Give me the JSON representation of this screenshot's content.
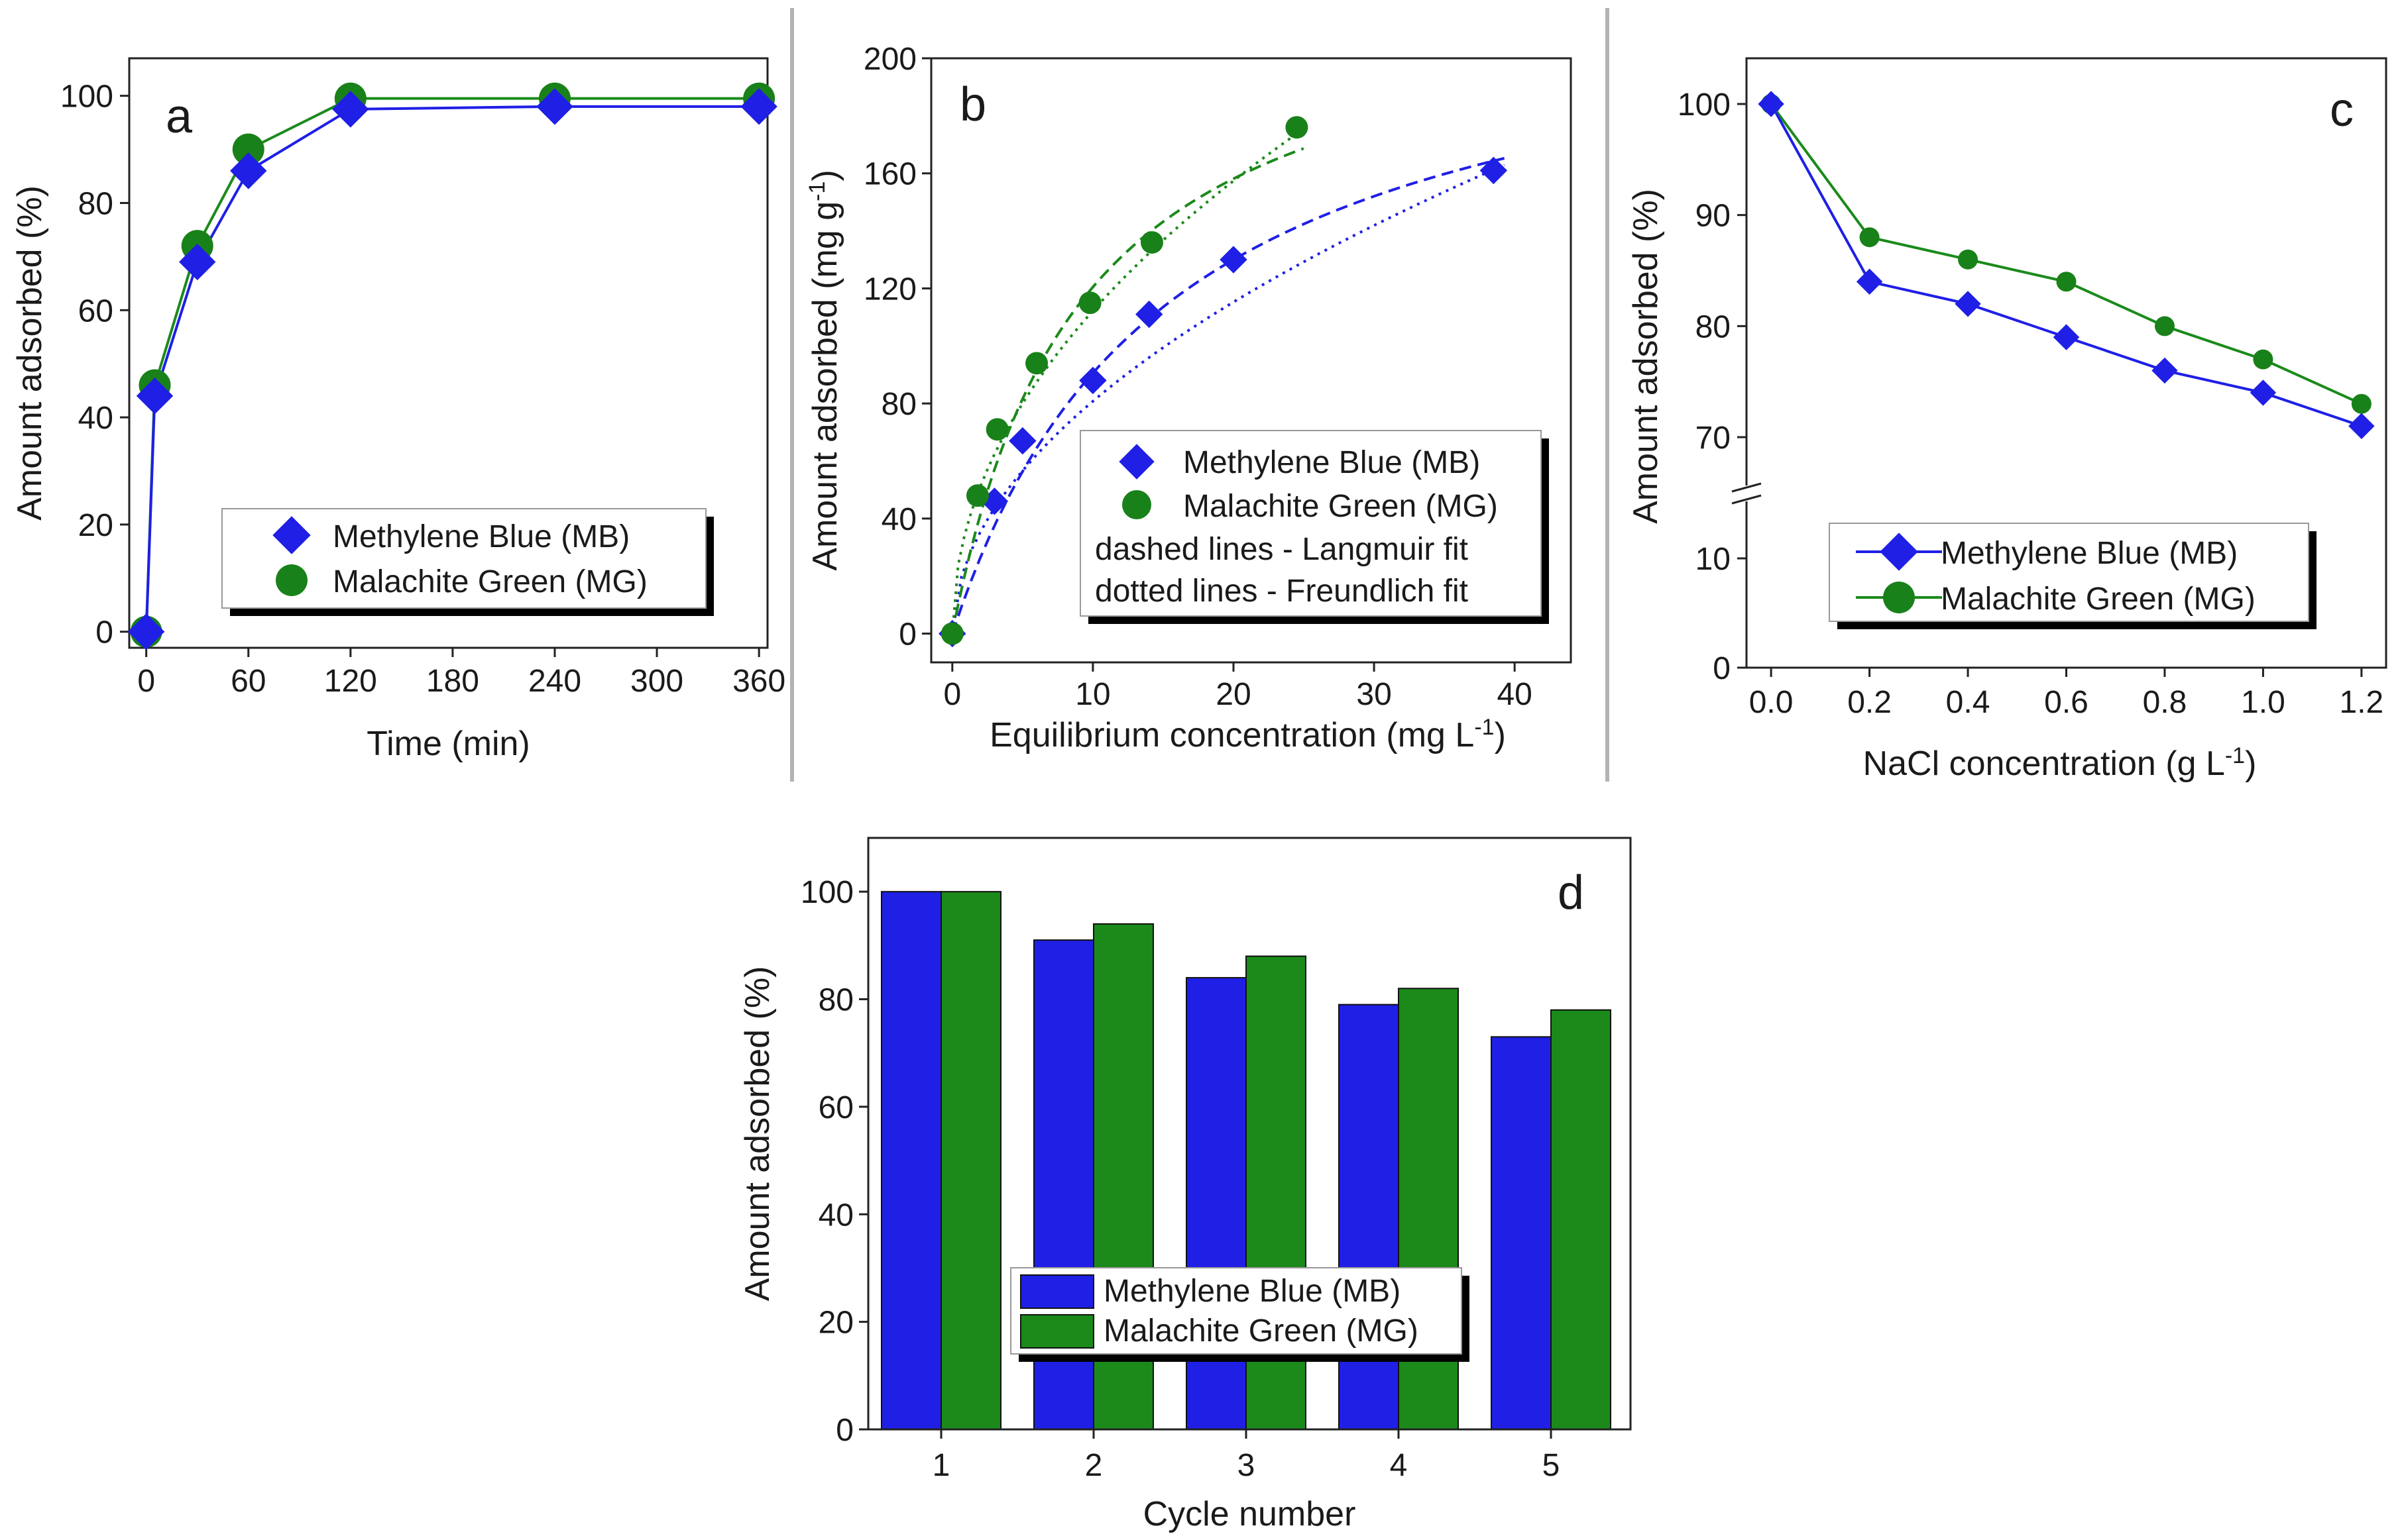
{
  "colors": {
    "mb": "#1f1fe6",
    "mg": "#1b8a1b",
    "mg_marker": "#198119"
  },
  "chart_data": [
    {
      "type": "line",
      "panel": "a",
      "xlabel": "Time (min)",
      "ylabel": "Amount adsorbed (%)",
      "xlim": [
        -10,
        365
      ],
      "ylim": [
        -3,
        107
      ],
      "xticks": [
        0,
        60,
        120,
        180,
        240,
        300,
        360
      ],
      "yticks": [
        0,
        20,
        40,
        60,
        80,
        100
      ],
      "series": [
        {
          "name": "Methylene Blue (MB)",
          "marker": "diamond",
          "color": "mb",
          "x": [
            0,
            5,
            30,
            60,
            120,
            240,
            360
          ],
          "y": [
            0,
            44,
            69,
            86,
            97.5,
            98,
            98
          ]
        },
        {
          "name": "Malachite Green (MG)",
          "marker": "circle",
          "color": "mg",
          "x": [
            0,
            5,
            30,
            60,
            120,
            240,
            360
          ],
          "y": [
            0,
            46,
            72,
            90,
            99.5,
            99.5,
            99.5
          ]
        }
      ],
      "legend": [
        "Methylene Blue (MB)",
        "Malachite Green (MG)"
      ]
    },
    {
      "type": "scatter",
      "panel": "b",
      "xlabel": "Equilibrium concentration (mg L",
      "xlabel_sup": "-1",
      "xlabel_end": ")",
      "ylabel": "Amount adsorbed (mg g",
      "ylabel_sup": "-1",
      "ylabel_end": ")",
      "xlim": [
        -1.5,
        44
      ],
      "ylim": [
        -10,
        200
      ],
      "xticks": [
        0,
        10,
        20,
        30,
        40
      ],
      "yticks": [
        0,
        40,
        80,
        120,
        160,
        200
      ],
      "series": [
        {
          "name": "Methylene Blue (MB)",
          "marker": "diamond",
          "color": "mb",
          "x": [
            0,
            3,
            5,
            10,
            14,
            20,
            38.5
          ],
          "y": [
            0,
            46,
            67,
            88,
            111,
            130,
            161
          ]
        },
        {
          "name": "Malachite Green (MG)",
          "marker": "circle",
          "color": "mg",
          "x": [
            0,
            1.8,
            3.2,
            6,
            9.8,
            14.2,
            24.5
          ],
          "y": [
            0,
            48,
            71,
            94,
            115,
            136,
            176
          ]
        }
      ],
      "fits": [
        {
          "kind": "langmuir",
          "style": "dashed",
          "color": "mb",
          "qmax": 230,
          "K": 0.065,
          "xmax": 38.5
        },
        {
          "kind": "freundlich",
          "style": "dotted",
          "color": "mb",
          "Kf": 24.8,
          "n": 1.95,
          "xmax": 38.5
        },
        {
          "kind": "langmuir",
          "style": "dashed",
          "color": "mg",
          "qmax": 230,
          "K": 0.11,
          "xmax": 24.5
        },
        {
          "kind": "freundlich",
          "style": "dotted",
          "color": "mg",
          "Kf": 36.5,
          "n": 2.05,
          "xmax": 24.5
        }
      ],
      "legend": [
        "Methylene Blue (MB)",
        "Malachite Green (MG)"
      ],
      "legend_notes": [
        "dashed lines - Langmuir fit",
        "dotted lines - Freundlich fit"
      ]
    },
    {
      "type": "line",
      "panel": "c",
      "xlabel": "NaCl concentration (g L",
      "xlabel_sup": "-1",
      "xlabel_end": ")",
      "ylabel": "Amount adsorbed (%)",
      "xlim": [
        -0.05,
        1.25
      ],
      "axis_break": true,
      "yticks_upper": [
        70,
        80,
        90,
        100
      ],
      "yticks_lower": [
        0,
        10
      ],
      "xticks": [
        "0.0",
        "0.2",
        "0.4",
        "0.6",
        "0.8",
        "1.0",
        "1.2"
      ],
      "series": [
        {
          "name": "Methylene Blue (MB)",
          "marker": "diamond",
          "color": "mb",
          "x": [
            0,
            0.2,
            0.4,
            0.6,
            0.8,
            1.0,
            1.2
          ],
          "y": [
            100,
            84,
            82,
            79,
            76,
            74,
            71
          ]
        },
        {
          "name": "Malachite Green (MG)",
          "marker": "circle",
          "color": "mg",
          "x": [
            0,
            0.2,
            0.4,
            0.6,
            0.8,
            1.0,
            1.2
          ],
          "y": [
            100,
            88,
            86,
            84,
            80,
            77,
            73
          ]
        }
      ],
      "legend": [
        "Methylene Blue (MB)",
        "Malachite Green (MG)"
      ]
    },
    {
      "type": "bar",
      "panel": "d",
      "xlabel": "Cycle number",
      "ylabel": "Amount adsorbed (%)",
      "ylim": [
        0,
        110
      ],
      "yticks": [
        0,
        20,
        40,
        60,
        80,
        100
      ],
      "categories": [
        "1",
        "2",
        "3",
        "4",
        "5"
      ],
      "series": [
        {
          "name": "Methylene Blue (MB)",
          "color": "mb",
          "values": [
            100,
            91,
            84,
            79,
            73
          ]
        },
        {
          "name": "Malachite Green (MG)",
          "color": "mg",
          "values": [
            100,
            94,
            88,
            82,
            78
          ]
        }
      ],
      "legend": [
        "Methylene Blue (MB)",
        "Malachite Green (MG)"
      ]
    }
  ]
}
